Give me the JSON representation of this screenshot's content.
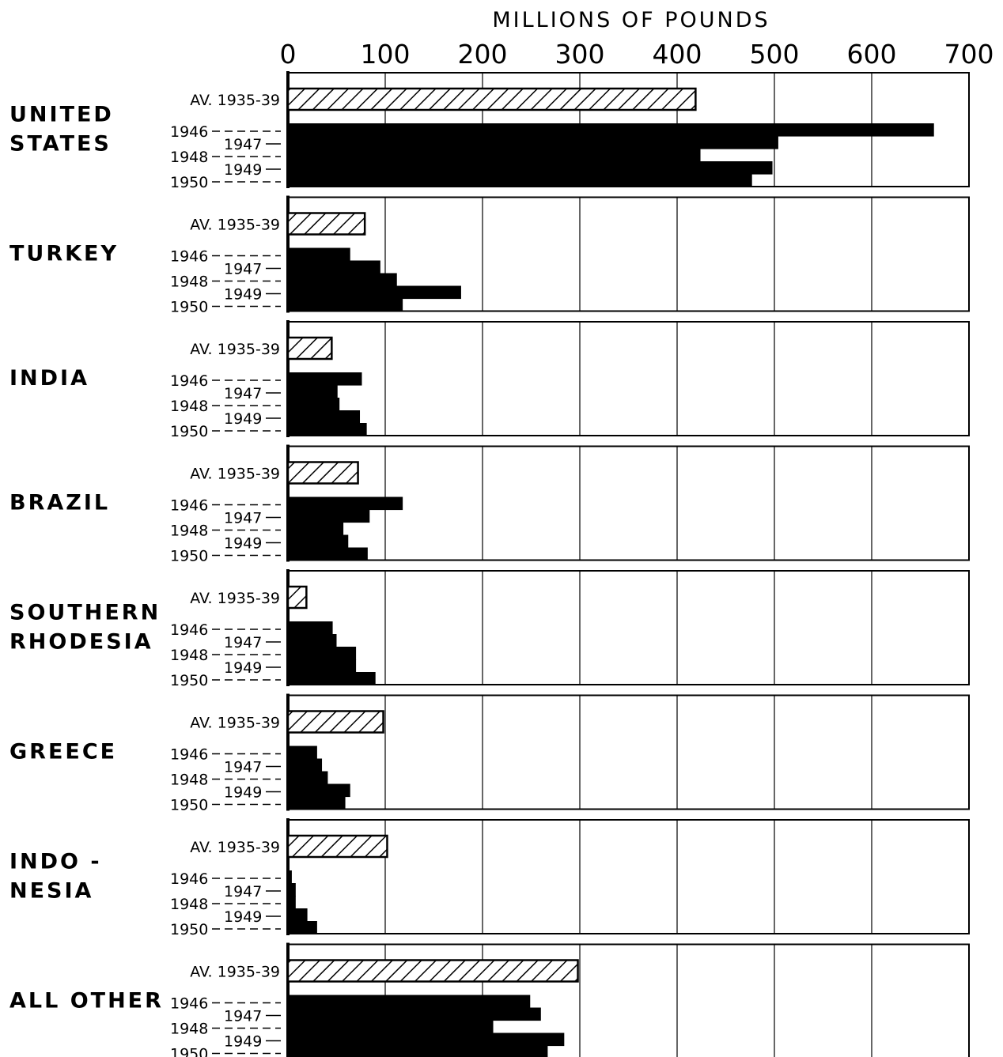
{
  "chart_data": {
    "type": "bar",
    "orientation": "horizontal",
    "xlabel": "MILLIONS OF POUNDS",
    "xlim": [
      0,
      700
    ],
    "x_ticks": [
      0,
      100,
      200,
      300,
      400,
      500,
      600,
      700
    ],
    "x_tick_labels": [
      "0",
      "100",
      "200",
      "300",
      "400",
      "500",
      "600",
      "700"
    ],
    "grid": true,
    "avg_label": "AV. 1935-39",
    "year_labels": [
      "1946",
      "1947",
      "1948",
      "1949",
      "1950"
    ],
    "groups": [
      {
        "name": "UNITED STATES",
        "lines": [
          "UNITED",
          "STATES"
        ],
        "average": 419,
        "years": [
          664,
          504,
          424,
          498,
          477
        ]
      },
      {
        "name": "TURKEY",
        "lines": [
          "TURKEY"
        ],
        "average": 79,
        "years": [
          64,
          95,
          112,
          178,
          118
        ]
      },
      {
        "name": "INDIA",
        "lines": [
          "INDIA"
        ],
        "average": 45,
        "years": [
          76,
          51,
          53,
          74,
          81
        ]
      },
      {
        "name": "BRAZIL",
        "lines": [
          "BRAZIL"
        ],
        "average": 72,
        "years": [
          118,
          84,
          57,
          62,
          82
        ]
      },
      {
        "name": "SOUTHERN RHODESIA",
        "lines": [
          "SOUTHERN",
          "RHODESIA"
        ],
        "average": 19,
        "years": [
          46,
          50,
          70,
          70,
          90
        ]
      },
      {
        "name": "GREECE",
        "lines": [
          "GREECE"
        ],
        "average": 98,
        "years": [
          30,
          35,
          41,
          64,
          59
        ]
      },
      {
        "name": "INDONESIA",
        "lines": [
          "INDO -",
          "NESIA"
        ],
        "average": 102,
        "years": [
          4,
          8,
          8,
          20,
          30
        ]
      },
      {
        "name": "ALL OTHER",
        "lines": [
          "ALL OTHER"
        ],
        "average": 298,
        "years": [
          249,
          260,
          211,
          284,
          267
        ]
      }
    ],
    "colors": {
      "year_bars": "#000000",
      "average_hatch": "#000000",
      "grid": "#000000"
    }
  }
}
